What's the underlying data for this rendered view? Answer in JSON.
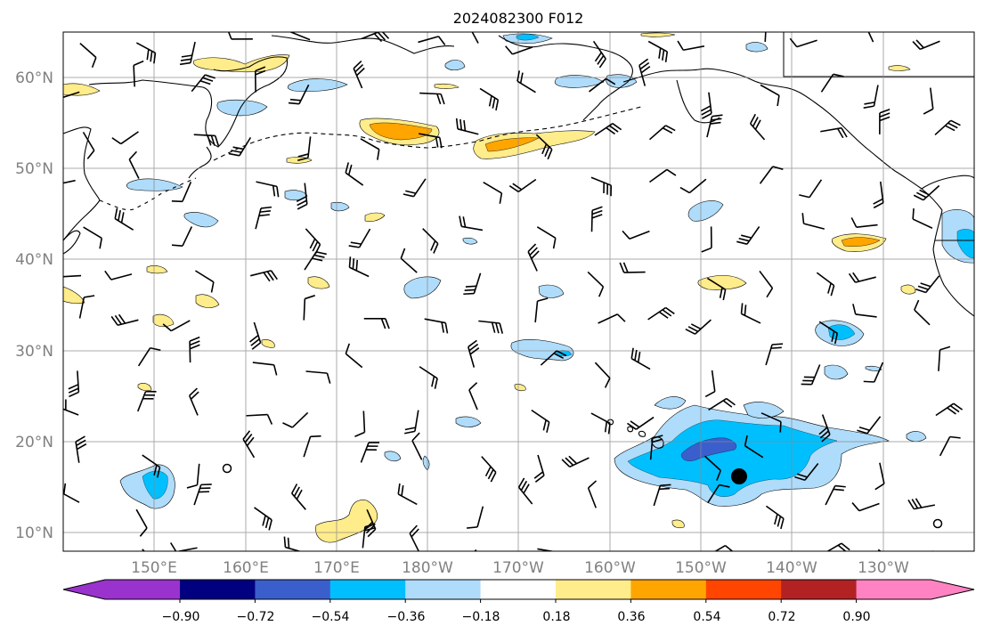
{
  "title": "2024082300 F012",
  "lon_ticks": [
    "150°E",
    "160°E",
    "170°E",
    "180°W",
    "170°W",
    "160°W",
    "150°W",
    "140°W",
    "130°W"
  ],
  "lat_ticks": [
    "60°N",
    "50°N",
    "40°N",
    "30°N",
    "20°N",
    "10°N"
  ],
  "colorbar": {
    "ticks": [
      "−0.90",
      "−0.72",
      "−0.54",
      "−0.36",
      "−0.18",
      "0.18",
      "0.36",
      "0.54",
      "0.72",
      "0.90"
    ],
    "colors": [
      "#9a32cd",
      "#000080",
      "#3a5fcd",
      "#00bfff",
      "#afdcfa",
      "#ffffff",
      "#ffec8b",
      "#ffa500",
      "#ff4500",
      "#b22222",
      "#ff83c2"
    ]
  },
  "markers": {
    "filled_dot": "large black dot",
    "open_circles": 2
  }
}
